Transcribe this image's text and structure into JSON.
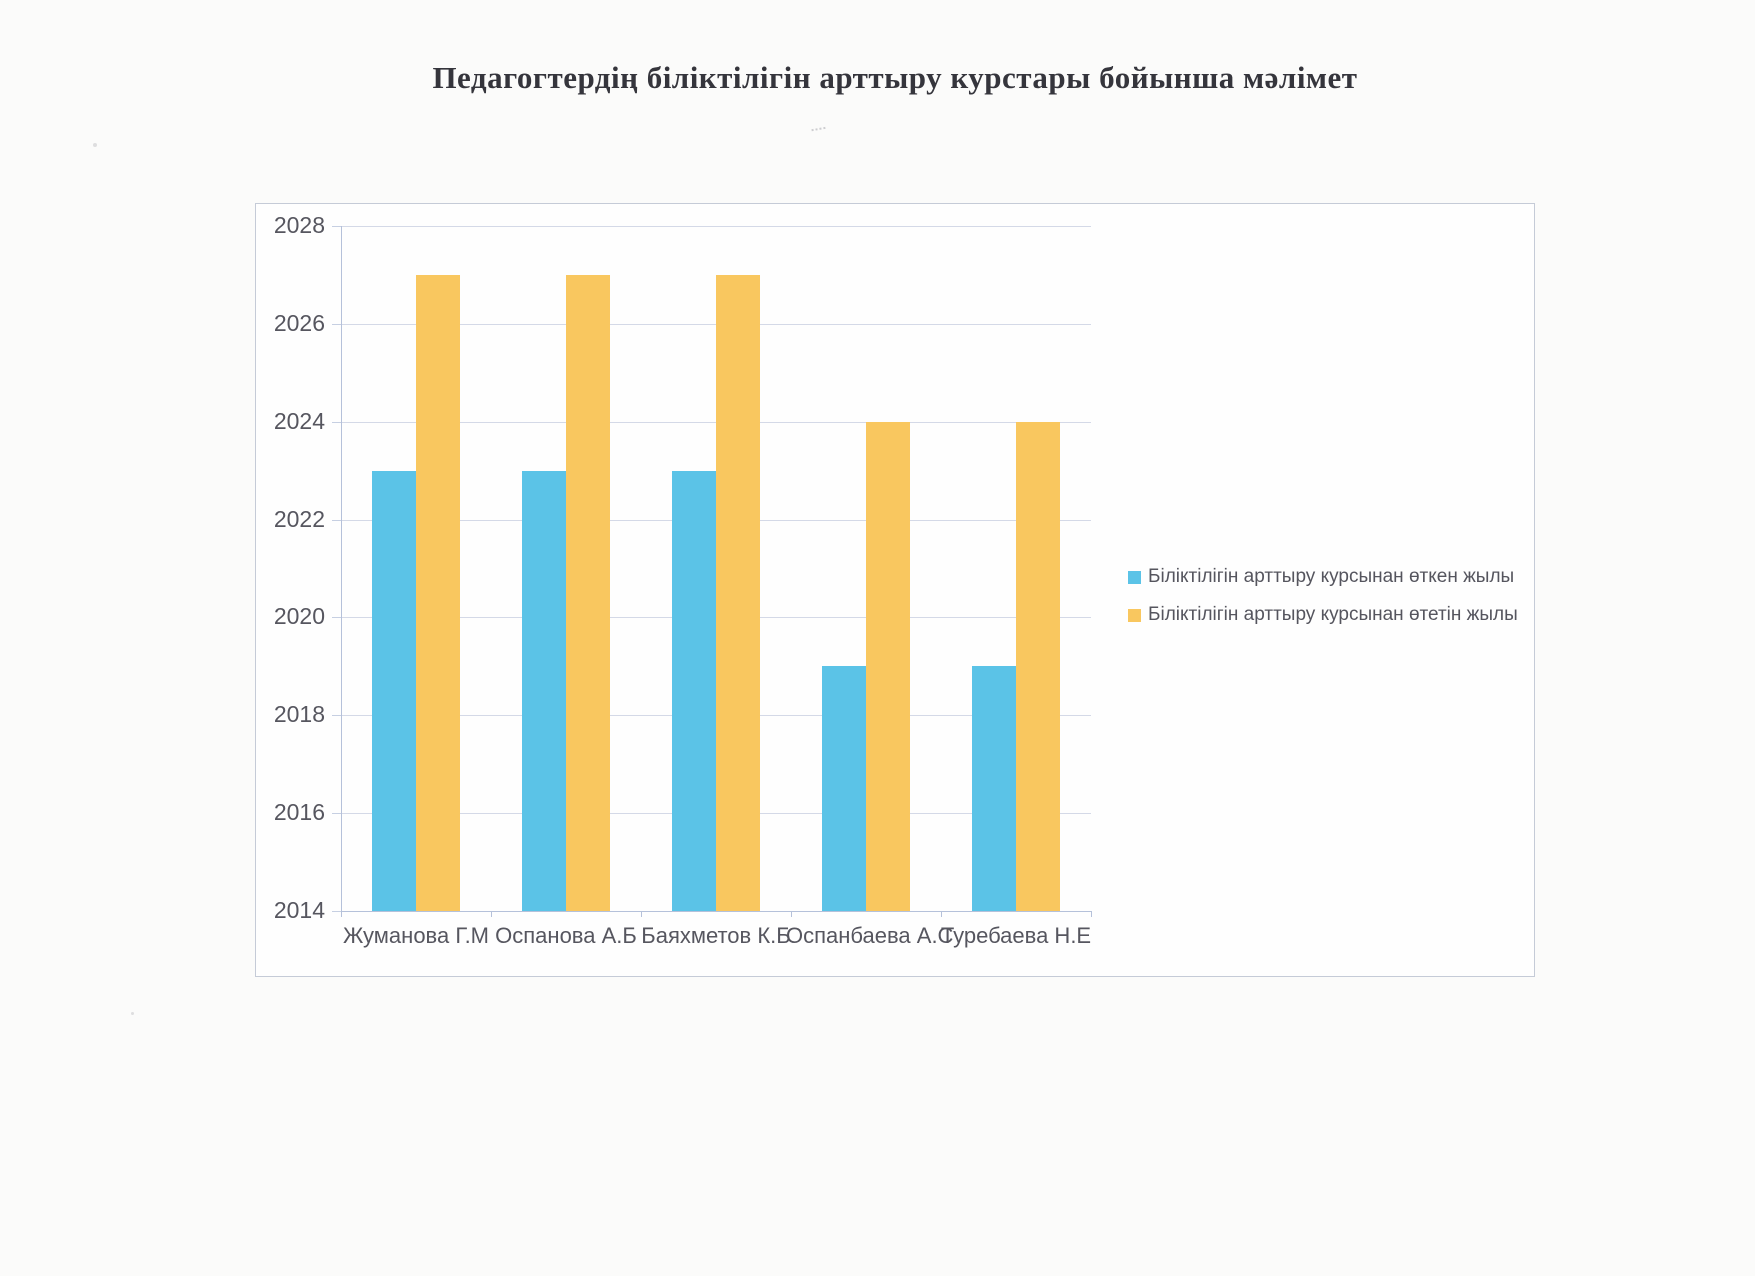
{
  "page": {
    "type": "scanned-document-chart"
  },
  "chart_data": {
    "type": "bar",
    "title": "Педагогтердің біліктілігін арттыру курстары бойынша мәлімет",
    "categories": [
      "Жуманова Г.М",
      "Оспанова А.Б",
      "Баяхметов К.Б",
      "Оспанбаева А.С",
      "Туребаева Н.Е"
    ],
    "series": [
      {
        "name": "Біліктілігін арттыру курсынан өткен жылы",
        "color": "#5bc3e7",
        "values": [
          2023,
          2023,
          2023,
          2019,
          2019
        ]
      },
      {
        "name": "Біліктілігін арттыру курсынан өтетін жылы",
        "color": "#f9c75f",
        "values": [
          2027,
          2027,
          2027,
          2024,
          2024
        ]
      }
    ],
    "xlabel": "",
    "ylabel": "",
    "ylim": [
      2014,
      2028
    ],
    "ytick_step": 2,
    "ytick_labels": [
      "2014",
      "2016",
      "2018",
      "2020",
      "2022",
      "2024",
      "2026",
      "2028"
    ],
    "grid": true,
    "legend_position": "right"
  }
}
